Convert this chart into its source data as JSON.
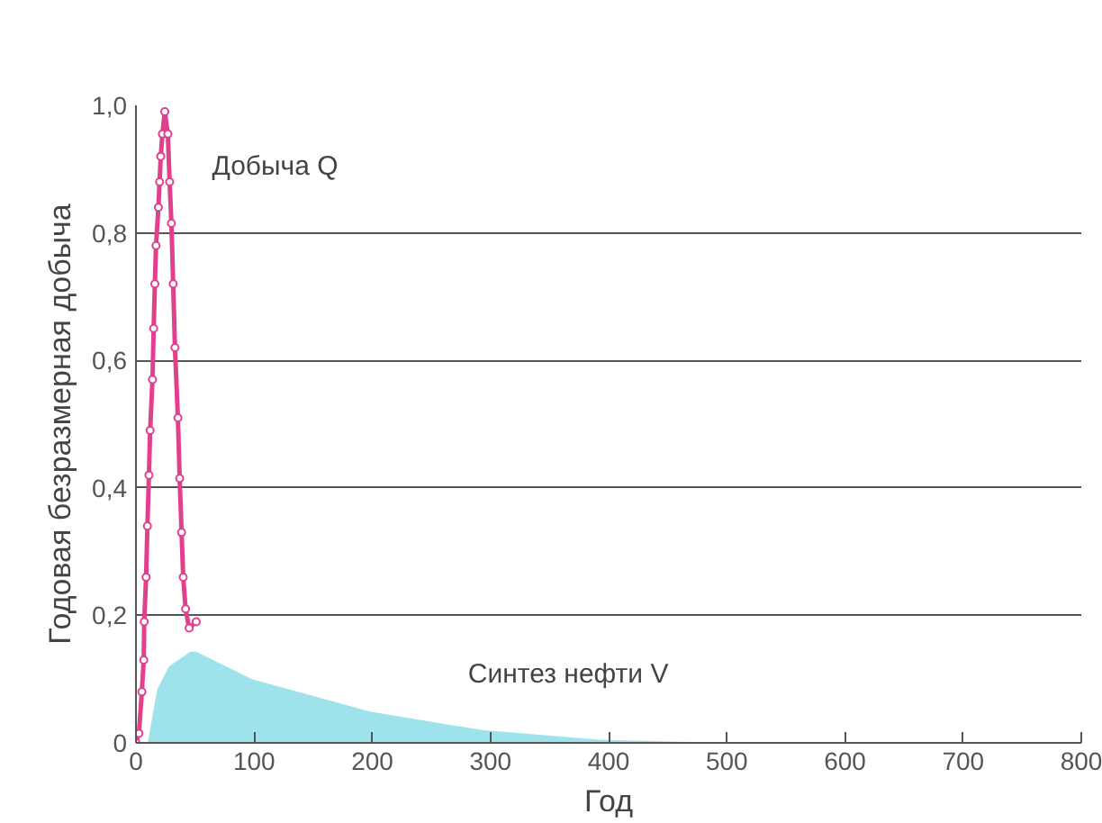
{
  "chart_data": {
    "type": "line",
    "xlabel": "Год",
    "ylabel": "Годовая безразмерная добыча",
    "xlim": [
      0,
      800
    ],
    "ylim": [
      0,
      1.0
    ],
    "xticks": [
      0,
      100,
      200,
      300,
      400,
      500,
      600,
      700,
      800
    ],
    "yticks": [
      {
        "value": 0,
        "label": "0"
      },
      {
        "value": 0.2,
        "label": "0,2"
      },
      {
        "value": 0.4,
        "label": "0,4"
      },
      {
        "value": 0.6,
        "label": "0,6"
      },
      {
        "value": 0.8,
        "label": "0,8"
      },
      {
        "value": 1.0,
        "label": "1,0"
      }
    ],
    "grid": "y",
    "line_style": "solid",
    "series": [
      {
        "name": "Добыча Q",
        "color": "#e0408c",
        "marker": "circle",
        "x": [
          0,
          2.5,
          5,
          6.6,
          7,
          8.6,
          9.7,
          11,
          12,
          14,
          15,
          16,
          17,
          19,
          20,
          21,
          22.4,
          24.4,
          27,
          28.5,
          30,
          31.5,
          33,
          35.5,
          37,
          38.6,
          40,
          42,
          45,
          51
        ],
        "values": [
          0,
          0.015,
          0.08,
          0.13,
          0.19,
          0.26,
          0.34,
          0.42,
          0.49,
          0.57,
          0.65,
          0.72,
          0.78,
          0.84,
          0.88,
          0.92,
          0.955,
          0.99,
          0.955,
          0.88,
          0.815,
          0.72,
          0.62,
          0.51,
          0.415,
          0.33,
          0.26,
          0.21,
          0.18,
          0.19
        ]
      },
      {
        "name": "Синтез нефти V",
        "color": "#9ee3ec",
        "type": "area",
        "x": [
          10,
          18,
          28,
          46,
          51,
          98,
          198,
          293,
          392,
          500
        ],
        "values": [
          0,
          0.084,
          0.12,
          0.143,
          0.143,
          0.1,
          0.049,
          0.02,
          0.005,
          0
        ]
      }
    ]
  }
}
